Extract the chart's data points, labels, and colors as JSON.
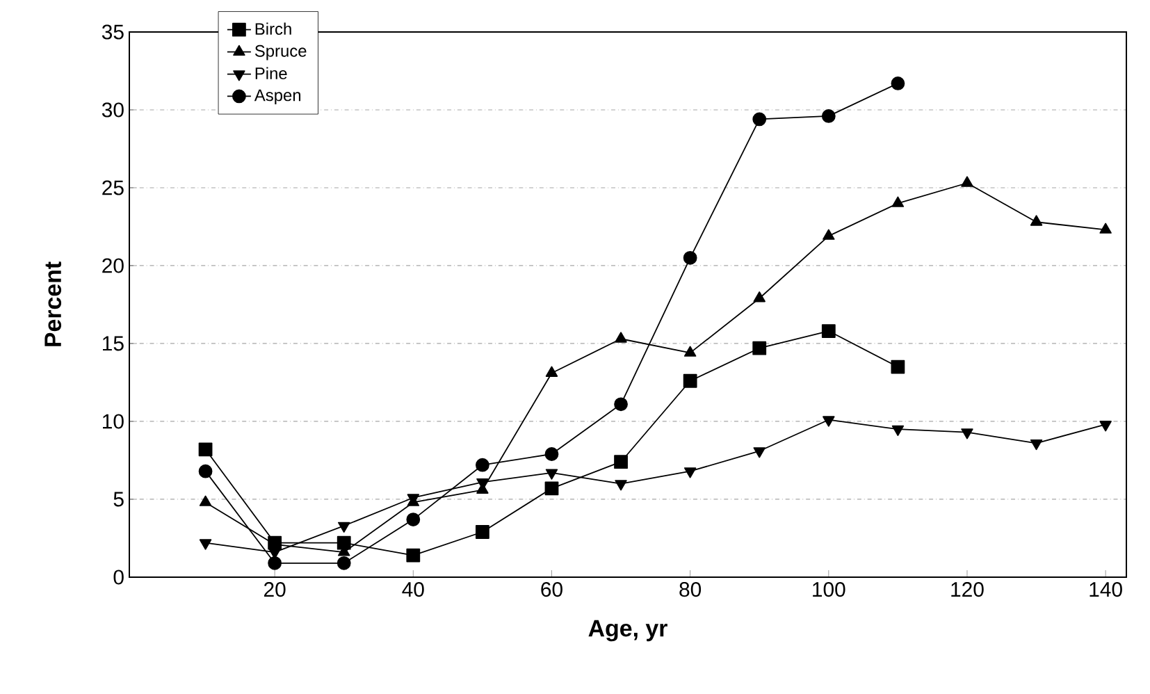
{
  "chart_data": {
    "type": "line",
    "xlabel": "Age, yr",
    "ylabel": "Percent",
    "x": [
      10,
      20,
      30,
      40,
      50,
      60,
      70,
      80,
      90,
      100,
      110,
      120,
      130,
      140
    ],
    "series": [
      {
        "name": "Birch",
        "color": "#000000",
        "marker": "square",
        "values": [
          8.2,
          2.2,
          2.2,
          1.4,
          2.9,
          5.7,
          7.4,
          12.6,
          14.7,
          15.8,
          13.5,
          null,
          null,
          null
        ]
      },
      {
        "name": "Spruce",
        "color": "#000000",
        "marker": "triangle",
        "values": [
          4.8,
          2.1,
          1.6,
          4.8,
          5.6,
          13.1,
          15.3,
          14.4,
          17.9,
          21.9,
          24.0,
          25.3,
          22.8,
          22.3
        ]
      },
      {
        "name": "Pine",
        "color": "#000000",
        "marker": "triangle-down",
        "values": [
          2.2,
          1.6,
          3.3,
          5.1,
          6.1,
          6.7,
          6.0,
          6.8,
          8.1,
          10.1,
          9.5,
          9.3,
          8.6,
          9.8
        ]
      },
      {
        "name": "Aspen",
        "color": "#000000",
        "marker": "circle",
        "values": [
          6.8,
          0.9,
          0.9,
          3.7,
          7.2,
          7.9,
          11.1,
          20.5,
          29.4,
          29.6,
          31.7,
          null,
          null,
          null
        ]
      }
    ],
    "xlim": [
      -1,
      143
    ],
    "ylim": [
      0,
      35
    ],
    "xticks": [
      20,
      40,
      60,
      80,
      100,
      120,
      140
    ],
    "yticks": [
      0,
      5,
      10,
      15,
      20,
      25,
      30,
      35
    ],
    "grid": "y",
    "legend": "top left",
    "line_style": "solid"
  }
}
